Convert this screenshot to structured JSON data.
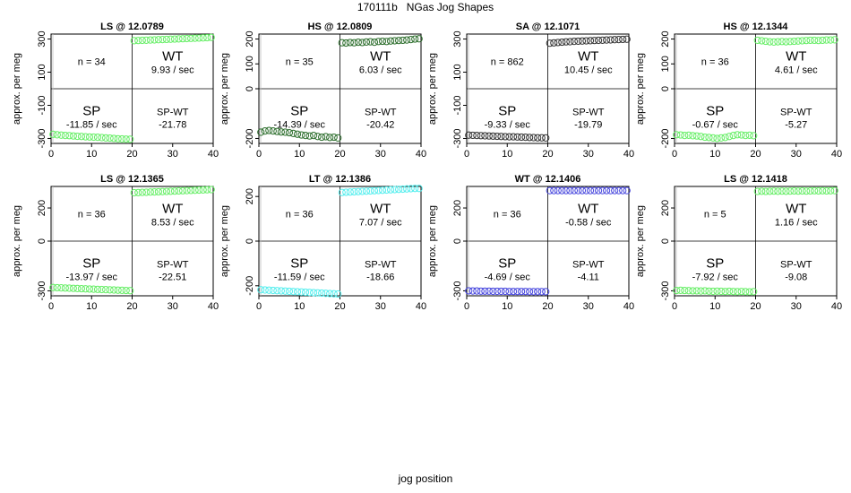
{
  "page": {
    "title": "170111b   NGas Jog Shapes",
    "xlabel": "jog position"
  },
  "chart_data": [
    {
      "type": "scatter",
      "title": "LS @ 12.0789",
      "ylabel": "approx. per meg",
      "xlim": [
        0,
        40
      ],
      "ylim": [
        -330,
        330
      ],
      "yticks": [
        -300,
        -100,
        100,
        300
      ],
      "xticks": [
        0,
        10,
        20,
        30,
        40
      ],
      "color": "#66ee66",
      "n_label": "n = 34",
      "wt_label": "WT",
      "wt_rate": "9.93 / sec",
      "sp_label": "SP",
      "sp_rate": "-11.85 / sec",
      "spwt_label": "SP-WT",
      "spwt_value": "-21.78",
      "sp_points": {
        "x_start": 0.5,
        "x_step": 1,
        "y": [
          -275,
          -278,
          -280,
          -282,
          -283,
          -285,
          -287,
          -288,
          -290,
          -291,
          -292,
          -293,
          -295,
          -297,
          -298,
          -300,
          -302,
          -303,
          -304,
          -305
        ]
      },
      "wt_points": {
        "x_start": 20.5,
        "x_step": 1,
        "y": [
          290,
          291,
          292,
          293,
          294,
          295,
          296,
          297,
          298,
          299,
          300,
          301,
          302,
          303,
          304,
          305,
          306,
          307,
          308,
          310
        ]
      }
    },
    {
      "type": "scatter",
      "title": "HS @ 12.0809",
      "ylabel": "approx. per meg",
      "xlim": [
        0,
        40
      ],
      "ylim": [
        -220,
        220
      ],
      "yticks": [
        -200,
        0,
        100,
        200
      ],
      "xticks": [
        0,
        10,
        20,
        30,
        40
      ],
      "color": "#2d6e2d",
      "n_label": "n = 35",
      "wt_label": "WT",
      "wt_rate": "6.03 / sec",
      "sp_label": "SP",
      "sp_rate": "-14.39 / sec",
      "spwt_label": "SP-WT",
      "spwt_value": "-20.42",
      "sp_points": {
        "x_start": 0.5,
        "x_step": 1,
        "y": [
          -175,
          -170,
          -168,
          -170,
          -172,
          -174,
          -175,
          -177,
          -180,
          -183,
          -186,
          -188,
          -190,
          -188,
          -192,
          -195,
          -193,
          -196,
          -195,
          -198
        ]
      },
      "wt_points": {
        "x_start": 20.5,
        "x_step": 1,
        "y": [
          185,
          184,
          186,
          185,
          187,
          186,
          188,
          189,
          187,
          190,
          191,
          190,
          192,
          193,
          194,
          195,
          196,
          198,
          200,
          201
        ]
      }
    },
    {
      "type": "scatter",
      "title": "SA @ 12.1071",
      "ylabel": "approx. per meg",
      "xlim": [
        0,
        40
      ],
      "ylim": [
        -330,
        330
      ],
      "yticks": [
        -300,
        -100,
        100,
        300
      ],
      "xticks": [
        0,
        10,
        20,
        30,
        40
      ],
      "color": "#333333",
      "n_label": "n = 862",
      "wt_label": "WT",
      "wt_rate": "10.45 / sec",
      "sp_label": "SP",
      "sp_rate": "-9.33 / sec",
      "spwt_label": "SP-WT",
      "spwt_value": "-19.79",
      "sp_points": {
        "x_start": 0.5,
        "x_step": 1,
        "y": [
          -280,
          -281,
          -282,
          -283,
          -284,
          -285,
          -286,
          -287,
          -288,
          -289,
          -290,
          -290,
          -291,
          -292,
          -293,
          -294,
          -295,
          -296,
          -296,
          -297
        ]
      },
      "wt_points": {
        "x_start": 20.5,
        "x_step": 1,
        "y": [
          275,
          277,
          279,
          281,
          283,
          284,
          286,
          287,
          288,
          289,
          290,
          291,
          292,
          293,
          294,
          295,
          296,
          297,
          298,
          299
        ]
      }
    },
    {
      "type": "scatter",
      "title": "HS @ 12.1344",
      "ylabel": "approx. per meg",
      "xlim": [
        0,
        40
      ],
      "ylim": [
        -220,
        220
      ],
      "yticks": [
        -200,
        0,
        100,
        200
      ],
      "xticks": [
        0,
        10,
        20,
        30,
        40
      ],
      "color": "#66ee66",
      "n_label": "n = 36",
      "wt_label": "WT",
      "wt_rate": "4.61 / sec",
      "sp_label": "SP",
      "sp_rate": "-0.67 / sec",
      "spwt_label": "SP-WT",
      "spwt_value": "-5.27",
      "sp_points": {
        "x_start": 0.5,
        "x_step": 1,
        "y": [
          -185,
          -186,
          -188,
          -187,
          -189,
          -190,
          -192,
          -195,
          -196,
          -198,
          -200,
          -198,
          -196,
          -192,
          -188,
          -185,
          -186,
          -188,
          -187,
          -189
        ]
      },
      "wt_points": {
        "x_start": 20.5,
        "x_step": 1,
        "y": [
          195,
          193,
          191,
          189,
          188,
          189,
          190,
          189,
          190,
          191,
          192,
          193,
          194,
          195,
          195,
          194,
          195,
          196,
          196,
          197
        ]
      }
    },
    {
      "type": "scatter",
      "title": "LS @ 12.1365",
      "ylabel": "approx. per meg",
      "xlim": [
        0,
        40
      ],
      "ylim": [
        -330,
        330
      ],
      "yticks": [
        -300,
        0,
        200
      ],
      "xticks": [
        0,
        10,
        20,
        30,
        40
      ],
      "color": "#66ee66",
      "n_label": "n = 36",
      "wt_label": "WT",
      "wt_rate": "8.53 / sec",
      "sp_label": "SP",
      "sp_rate": "-13.97 / sec",
      "spwt_label": "SP-WT",
      "spwt_value": "-22.51",
      "sp_points": {
        "x_start": 0.5,
        "x_step": 1,
        "y": [
          -280,
          -281,
          -282,
          -283,
          -284,
          -285,
          -286,
          -287,
          -288,
          -289,
          -290,
          -291,
          -292,
          -293,
          -294,
          -295,
          -296,
          -297,
          -298,
          -299
        ]
      },
      "wt_points": {
        "x_start": 20.5,
        "x_step": 1,
        "y": [
          292,
          293,
          294,
          295,
          296,
          297,
          298,
          299,
          300,
          301,
          302,
          303,
          304,
          305,
          306,
          307,
          308,
          309,
          310,
          311
        ]
      }
    },
    {
      "type": "scatter",
      "title": "LT @ 12.1386",
      "ylabel": "approx. per meg",
      "xlim": [
        0,
        40
      ],
      "ylim": [
        -245,
        245
      ],
      "yticks": [
        -200,
        0,
        200
      ],
      "xticks": [
        0,
        10,
        20,
        30,
        40
      ],
      "color": "#55eeee",
      "n_label": "n = 36",
      "wt_label": "WT",
      "wt_rate": "7.07 / sec",
      "sp_label": "SP",
      "sp_rate": "-11.59 / sec",
      "spwt_label": "SP-WT",
      "spwt_value": "-18.66",
      "sp_points": {
        "x_start": 0.5,
        "x_step": 1,
        "y": [
          -218,
          -219,
          -220,
          -221,
          -222,
          -223,
          -224,
          -225,
          -226,
          -227,
          -228,
          -229,
          -230,
          -231,
          -232,
          -233,
          -234,
          -235,
          -236,
          -237
        ]
      },
      "wt_points": {
        "x_start": 20.5,
        "x_step": 1,
        "y": [
          218,
          219,
          220,
          221,
          222,
          223,
          224,
          225,
          226,
          227,
          228,
          229,
          230,
          231,
          232,
          233,
          234,
          235,
          236,
          236
        ]
      }
    },
    {
      "type": "scatter",
      "title": "WT @ 12.1406",
      "ylabel": "approx. per meg",
      "xlim": [
        0,
        40
      ],
      "ylim": [
        -330,
        330
      ],
      "yticks": [
        -300,
        0,
        200
      ],
      "xticks": [
        0,
        10,
        20,
        30,
        40
      ],
      "color": "#4444dd",
      "n_label": "n = 36",
      "wt_label": "WT",
      "wt_rate": "-0.58 / sec",
      "sp_label": "SP",
      "sp_rate": "-4.69 / sec",
      "spwt_label": "SP-WT",
      "spwt_value": "-4.11",
      "sp_points": {
        "x_start": 0.5,
        "x_step": 1,
        "y": [
          -300,
          -301,
          -301,
          -302,
          -302,
          -302,
          -303,
          -303,
          -303,
          -303,
          -304,
          -304,
          -304,
          -304,
          -304,
          -305,
          -305,
          -305,
          -305,
          -305
        ]
      },
      "wt_points": {
        "x_start": 20.5,
        "x_step": 1,
        "y": [
          305,
          305,
          305,
          305,
          305,
          305,
          305,
          305,
          305,
          305,
          305,
          305,
          305,
          305,
          305,
          305,
          305,
          305,
          305,
          305
        ]
      }
    },
    {
      "type": "scatter",
      "title": "LS @ 12.1418",
      "ylabel": "approx. per meg",
      "xlim": [
        0,
        40
      ],
      "ylim": [
        -330,
        330
      ],
      "yticks": [
        -300,
        0,
        200
      ],
      "xticks": [
        0,
        10,
        20,
        30,
        40
      ],
      "color": "#66ee66",
      "n_label": "n = 5",
      "wt_label": "WT",
      "wt_rate": "1.16 / sec",
      "sp_label": "SP",
      "sp_rate": "-7.92 / sec",
      "spwt_label": "SP-WT",
      "spwt_value": "-9.08",
      "sp_points": {
        "x_start": 0.5,
        "x_step": 1,
        "y": [
          -298,
          -297,
          -298,
          -299,
          -300,
          -300,
          -301,
          -300,
          -302,
          -303,
          -302,
          -303,
          -304,
          -303,
          -304,
          -305,
          -304,
          -305,
          -306,
          -305
        ]
      },
      "wt_points": {
        "x_start": 20.5,
        "x_step": 1,
        "y": [
          300,
          301,
          300,
          301,
          302,
          301,
          302,
          301,
          302,
          303,
          302,
          303,
          302,
          303,
          304,
          303,
          304,
          303,
          304,
          305
        ]
      }
    }
  ]
}
